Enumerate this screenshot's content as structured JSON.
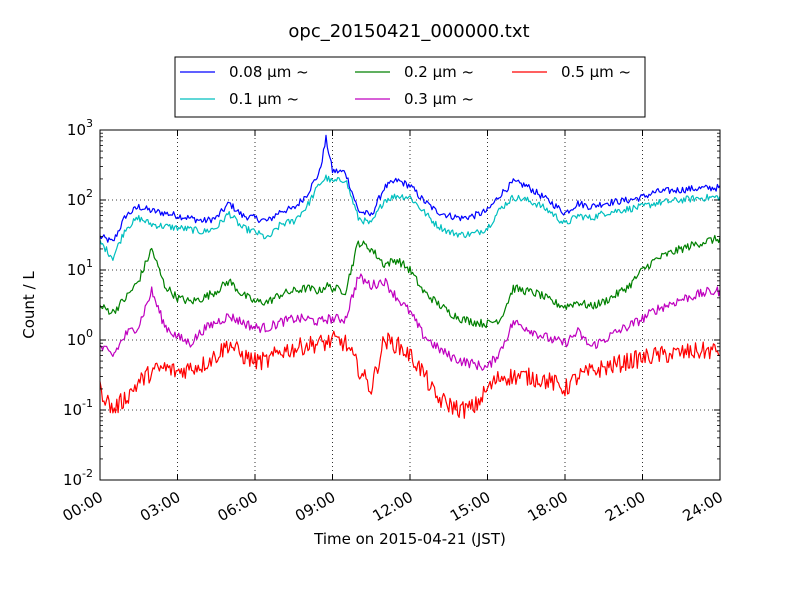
{
  "chart_data": {
    "type": "line",
    "title": "opc_20150421_000000.txt",
    "xlabel": "Time on 2015-04-21 (JST)",
    "ylabel": "Count / L",
    "y_scale": "log",
    "ylim": [
      0.01,
      1000
    ],
    "xlim": [
      "00:00",
      "24:00"
    ],
    "x_ticks": [
      "00:00",
      "03:00",
      "06:00",
      "09:00",
      "12:00",
      "15:00",
      "18:00",
      "21:00",
      "24:00"
    ],
    "y_ticks": [
      {
        "base": "10",
        "exp": "-2",
        "value": 0.01
      },
      {
        "base": "10",
        "exp": "-1",
        "value": 0.1
      },
      {
        "base": "10",
        "exp": "0",
        "value": 1
      },
      {
        "base": "10",
        "exp": "1",
        "value": 10
      },
      {
        "base": "10",
        "exp": "2",
        "value": 100
      },
      {
        "base": "10",
        "exp": "3",
        "value": 1000
      }
    ],
    "grid": true,
    "legend_position": "top",
    "x": [
      "00:00",
      "00:30",
      "01:00",
      "01:30",
      "02:00",
      "02:30",
      "03:00",
      "03:30",
      "04:00",
      "04:30",
      "05:00",
      "05:30",
      "06:00",
      "06:30",
      "07:00",
      "07:30",
      "08:00",
      "08:30",
      "08:45",
      "09:00",
      "09:30",
      "10:00",
      "10:30",
      "11:00",
      "11:30",
      "12:00",
      "12:30",
      "13:00",
      "13:30",
      "14:00",
      "14:30",
      "15:00",
      "15:30",
      "16:00",
      "16:30",
      "17:00",
      "17:30",
      "18:00",
      "18:30",
      "19:00",
      "19:30",
      "20:00",
      "20:30",
      "21:00",
      "21:30",
      "22:00",
      "22:30",
      "23:00",
      "23:30",
      "24:00"
    ],
    "series": [
      {
        "name": "0.08 μm ~",
        "color": "#0000ff",
        "values": [
          30,
          25,
          60,
          80,
          70,
          65,
          60,
          55,
          50,
          55,
          90,
          60,
          55,
          50,
          70,
          75,
          120,
          250,
          750,
          260,
          250,
          70,
          60,
          150,
          190,
          160,
          100,
          70,
          60,
          55,
          60,
          70,
          120,
          180,
          160,
          120,
          90,
          65,
          90,
          80,
          90,
          95,
          100,
          110,
          130,
          135,
          140,
          145,
          148,
          150
        ]
      },
      {
        "name": "0.1 μm ~",
        "color": "#00bfbf",
        "values": [
          25,
          15,
          40,
          55,
          45,
          42,
          40,
          38,
          35,
          40,
          65,
          40,
          35,
          28,
          45,
          50,
          80,
          170,
          210,
          180,
          200,
          55,
          45,
          100,
          115,
          110,
          70,
          45,
          35,
          32,
          33,
          40,
          75,
          110,
          100,
          85,
          65,
          45,
          60,
          55,
          65,
          70,
          75,
          80,
          90,
          95,
          100,
          105,
          108,
          110
        ]
      },
      {
        "name": "0.2 μm ~",
        "color": "#008000",
        "values": [
          3,
          2.5,
          4,
          7,
          20,
          6,
          4,
          3.5,
          4,
          5,
          7,
          4.5,
          3.5,
          3.5,
          4.5,
          5,
          5.5,
          5,
          6,
          5.5,
          5,
          25,
          20,
          12,
          14,
          10,
          5,
          3.5,
          2.5,
          2,
          1.8,
          1.7,
          2,
          5.5,
          5,
          4.5,
          3.5,
          3,
          3.5,
          3,
          3.5,
          4.5,
          6,
          10,
          14,
          17,
          20,
          23,
          26,
          28
        ]
      },
      {
        "name": "0.3 μm ~",
        "color": "#bf00bf",
        "values": [
          0.8,
          0.6,
          1.2,
          1.6,
          5,
          1.6,
          1.1,
          0.9,
          1.4,
          1.8,
          2.2,
          1.8,
          1.5,
          1.5,
          1.8,
          2,
          2,
          1.8,
          2,
          2,
          2,
          8,
          6,
          7,
          4,
          2.5,
          1.2,
          0.8,
          0.6,
          0.5,
          0.45,
          0.4,
          0.7,
          1.8,
          1.5,
          1.2,
          1,
          0.9,
          1.3,
          0.8,
          1,
          1.3,
          1.6,
          2,
          2.7,
          3.2,
          3.8,
          4.3,
          4.8,
          5
        ]
      },
      {
        "name": "0.5 μm ~",
        "color": "#ff0000",
        "values": [
          0.2,
          0.1,
          0.15,
          0.25,
          0.35,
          0.4,
          0.35,
          0.4,
          0.45,
          0.6,
          0.9,
          0.6,
          0.5,
          0.5,
          0.7,
          0.75,
          0.85,
          0.9,
          0.9,
          1,
          0.9,
          0.4,
          0.2,
          1,
          0.85,
          0.6,
          0.35,
          0.15,
          0.12,
          0.1,
          0.11,
          0.2,
          0.3,
          0.3,
          0.3,
          0.28,
          0.25,
          0.2,
          0.3,
          0.35,
          0.4,
          0.45,
          0.5,
          0.55,
          0.6,
          0.62,
          0.65,
          0.68,
          0.7,
          0.7
        ]
      }
    ]
  }
}
